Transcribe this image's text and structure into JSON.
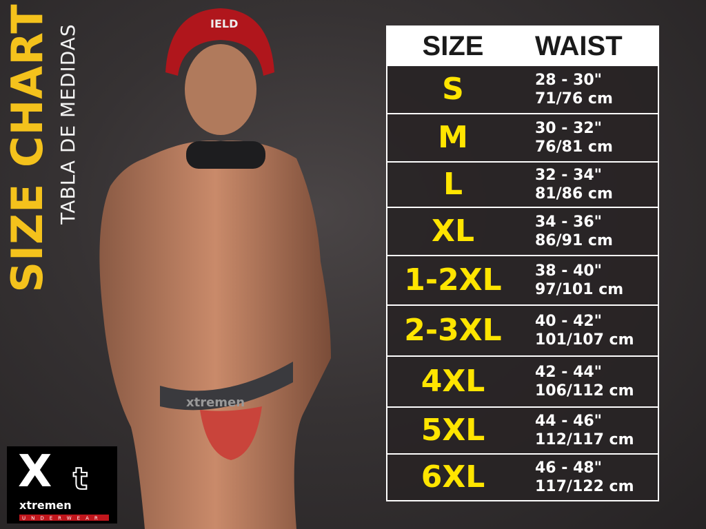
{
  "title": "SIZE CHART",
  "subtitle": "TABLA DE MEDIDAS",
  "logo": {
    "mark": "Xt",
    "brand": "xtremen",
    "tagline": "UNDERWEAR"
  },
  "photo": {
    "helmet_text": "IELD",
    "waistband_text": "xtremen"
  },
  "colors": {
    "accent": "#ffe500",
    "title": "#f4c21c",
    "background": "#363233"
  },
  "table": {
    "headers": [
      "SIZE",
      "WAIST"
    ],
    "rows": [
      {
        "size": "S",
        "inches": "28 - 30\"",
        "cm": "71/76 cm"
      },
      {
        "size": "M",
        "inches": "30 - 32\"",
        "cm": "76/81 cm"
      },
      {
        "size": "L",
        "inches": "32 - 34\"",
        "cm": "81/86 cm"
      },
      {
        "size": "XL",
        "inches": "34 - 36\"",
        "cm": "86/91 cm"
      },
      {
        "size": "1-2XL",
        "inches": "38 - 40\"",
        "cm": "97/101 cm"
      },
      {
        "size": "2-3XL",
        "inches": "40 - 42\"",
        "cm": "101/107 cm"
      },
      {
        "size": "4XL",
        "inches": "42 - 44\"",
        "cm": "106/112 cm"
      },
      {
        "size": "5XL",
        "inches": "44 - 46\"",
        "cm": "112/117 cm"
      },
      {
        "size": "6XL",
        "inches": "46 - 48\"",
        "cm": "117/122 cm"
      }
    ]
  }
}
